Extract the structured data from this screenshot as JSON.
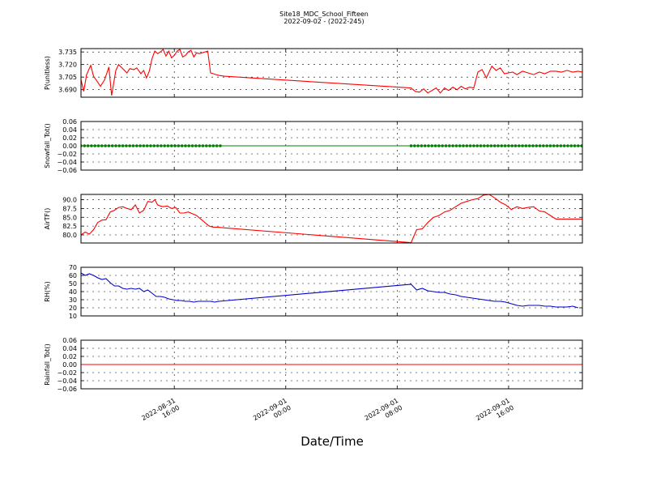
{
  "figure": {
    "title_line1": "Site18_MDC_School_Fifteen",
    "title_line2": "2022-09-02 - (2022-245)",
    "xlabel": "Date/Time",
    "xticks": [
      {
        "t": 16,
        "line1": "2022-08-31",
        "line2": "16:00"
      },
      {
        "t": 24,
        "line1": "2022-09-01",
        "line2": "00:00"
      },
      {
        "t": 32,
        "line1": "2022-09-01",
        "line2": "08:00"
      },
      {
        "t": 40,
        "line1": "2022-09-01",
        "line2": "16:00"
      }
    ]
  },
  "chart_data": [
    {
      "type": "line",
      "ylabel": "P(unitless)",
      "ylim": [
        3.681,
        3.739
      ],
      "yticks": [
        3.69,
        3.705,
        3.72,
        3.735
      ],
      "ytick_labels": [
        "3.690",
        "3.705",
        "3.720",
        "3.735"
      ],
      "grid": true,
      "series": [
        {
          "color": "#ff0000",
          "marker": "none",
          "x": [
            9.3,
            9.5,
            9.7,
            10.0,
            10.2,
            10.5,
            10.7,
            11.0,
            11.3,
            11.5,
            11.8,
            12.0,
            12.3,
            12.6,
            12.8,
            13.1,
            13.3,
            13.6,
            13.8,
            14.0,
            14.2,
            14.4,
            14.6,
            14.8,
            15.0,
            15.2,
            15.4,
            15.6,
            15.8,
            16.0,
            16.2,
            16.4,
            16.6,
            16.8,
            17.0,
            17.2,
            17.4,
            17.6,
            17.8,
            18.0,
            18.2,
            18.4,
            18.6,
            18.8,
            19.0,
            19.2,
            19.6,
            33.0,
            33.3,
            33.6,
            33.9,
            34.2,
            34.5,
            34.8,
            35.1,
            35.4,
            35.7,
            36.0,
            36.3,
            36.6,
            36.9,
            37.2,
            37.5,
            37.8,
            38.1,
            38.4,
            38.8,
            39.1,
            39.4,
            39.7,
            40.0,
            40.3,
            40.6,
            41.0,
            41.4,
            41.8,
            42.2,
            42.6,
            43.0,
            43.4,
            43.8,
            44.2,
            44.6,
            45.0,
            45.3
          ],
          "y": [
            3.702,
            3.688,
            3.708,
            3.719,
            3.706,
            3.699,
            3.694,
            3.702,
            3.717,
            3.683,
            3.713,
            3.72,
            3.715,
            3.71,
            3.715,
            3.714,
            3.716,
            3.709,
            3.713,
            3.704,
            3.712,
            3.727,
            3.736,
            3.733,
            3.735,
            3.738,
            3.73,
            3.736,
            3.728,
            3.731,
            3.736,
            3.738,
            3.729,
            3.731,
            3.735,
            3.737,
            3.729,
            3.734,
            3.733,
            3.734,
            3.735,
            3.736,
            3.71,
            3.709,
            3.708,
            3.707,
            3.706,
            3.692,
            3.688,
            3.687,
            3.691,
            3.686,
            3.689,
            3.692,
            3.686,
            3.692,
            3.689,
            3.693,
            3.69,
            3.694,
            3.691,
            3.693,
            3.692,
            3.711,
            3.714,
            3.704,
            3.718,
            3.713,
            3.716,
            3.709,
            3.71,
            3.711,
            3.708,
            3.712,
            3.71,
            3.708,
            3.711,
            3.709,
            3.712,
            3.712,
            3.711,
            3.713,
            3.711,
            3.712,
            3.711
          ]
        }
      ]
    },
    {
      "type": "scatter",
      "ylabel": "Snowfall_Tot()",
      "ylim": [
        -0.06,
        0.06
      ],
      "yticks": [
        -0.06,
        -0.04,
        -0.02,
        0.0,
        0.02,
        0.04,
        0.06
      ],
      "ytick_labels": [
        "−0.06",
        "−0.04",
        "−0.02",
        "0.00",
        "0.02",
        "0.04",
        "0.06"
      ],
      "grid": true,
      "baseline": {
        "y": 0,
        "color": "#008000"
      },
      "series": [
        {
          "color": "#008000",
          "marker": "dot",
          "segments": [
            {
              "x_start": 9.3,
              "x_end": 19.5,
              "step": 0.25,
              "y": 0
            },
            {
              "x_start": 33.0,
              "x_end": 45.3,
              "step": 0.25,
              "y": 0
            }
          ]
        }
      ]
    },
    {
      "type": "line",
      "ylabel": "AirTF()",
      "ylim": [
        77.7,
        91.5
      ],
      "yticks": [
        80.0,
        82.5,
        85.0,
        87.5,
        90.0
      ],
      "ytick_labels": [
        "80.0",
        "82.5",
        "85.0",
        "87.5",
        "90.0"
      ],
      "grid": true,
      "series": [
        {
          "color": "#ff0000",
          "marker": "none",
          "x": [
            9.3,
            9.6,
            9.9,
            10.2,
            10.5,
            10.8,
            11.1,
            11.4,
            11.7,
            12.0,
            12.3,
            12.6,
            12.9,
            13.2,
            13.5,
            13.8,
            14.1,
            14.4,
            14.6,
            14.8,
            15.0,
            15.2,
            15.5,
            15.8,
            16.1,
            16.4,
            16.7,
            17.0,
            17.3,
            17.6,
            17.9,
            18.2,
            18.5,
            18.8,
            19.1,
            19.6,
            33.0,
            33.4,
            33.8,
            34.2,
            34.6,
            35.0,
            35.4,
            35.8,
            36.2,
            36.6,
            37.0,
            37.4,
            37.8,
            38.2,
            38.6,
            39.0,
            39.4,
            39.8,
            40.2,
            40.6,
            41.0,
            41.4,
            41.8,
            42.2,
            42.6,
            43.0,
            43.4,
            43.8,
            44.2,
            44.6,
            45.0,
            45.3
          ],
          "y": [
            80.0,
            80.8,
            80.2,
            81.5,
            83.5,
            84.2,
            84.3,
            86.5,
            87.0,
            87.8,
            88.0,
            87.5,
            87.2,
            88.5,
            86.2,
            87.0,
            89.5,
            89.3,
            90.0,
            88.5,
            88.2,
            88.0,
            88.2,
            87.5,
            87.8,
            86.2,
            86.2,
            86.5,
            86.0,
            85.5,
            84.5,
            83.5,
            82.5,
            82.2,
            82.2,
            82.0,
            77.8,
            81.5,
            81.7,
            83.5,
            85.0,
            85.5,
            86.5,
            87.0,
            88.0,
            89.0,
            89.5,
            90.0,
            90.3,
            91.3,
            91.5,
            90.5,
            89.3,
            88.5,
            87.2,
            88.0,
            87.5,
            87.8,
            88.0,
            86.8,
            86.5,
            85.5,
            84.5,
            84.5,
            84.5,
            84.5,
            84.5,
            84.5
          ]
        }
      ]
    },
    {
      "type": "line",
      "ylabel": "RH(%)",
      "ylim": [
        10,
        70
      ],
      "yticks": [
        10,
        20,
        30,
        40,
        50,
        60,
        70
      ],
      "ytick_labels": [
        "10",
        "20",
        "30",
        "40",
        "50",
        "60",
        "70"
      ],
      "grid": true,
      "series": [
        {
          "color": "#0000cc",
          "marker": "none",
          "x": [
            9.3,
            9.6,
            9.9,
            10.2,
            10.5,
            10.8,
            11.1,
            11.4,
            11.7,
            12.0,
            12.3,
            12.6,
            12.9,
            13.2,
            13.5,
            13.8,
            14.1,
            14.4,
            14.7,
            15.0,
            15.3,
            15.6,
            15.9,
            16.2,
            16.5,
            16.8,
            17.1,
            17.4,
            17.7,
            18.0,
            18.3,
            18.6,
            18.9,
            19.2,
            33.0,
            33.4,
            33.8,
            34.2,
            34.6,
            35.0,
            35.4,
            35.8,
            36.2,
            36.6,
            37.0,
            37.4,
            37.8,
            38.2,
            38.6,
            39.0,
            39.4,
            39.8,
            40.2,
            40.6,
            41.0,
            41.4,
            41.8,
            42.2,
            42.6,
            43.0,
            43.4,
            43.8,
            44.2,
            44.6,
            45.0
          ],
          "y": [
            63,
            60,
            62,
            60,
            57,
            55,
            56,
            51,
            47,
            47,
            44,
            43,
            44,
            43,
            44,
            40,
            42,
            38,
            34,
            34,
            33,
            31,
            30,
            29,
            29,
            28,
            28,
            27,
            28,
            28,
            28,
            28,
            27,
            28,
            49,
            42,
            44,
            41,
            40,
            39,
            39,
            37,
            36,
            34,
            33,
            32,
            31,
            30,
            29,
            28,
            28,
            27,
            25,
            23,
            22,
            23,
            23,
            23,
            22,
            22,
            21,
            21,
            21,
            22,
            20
          ]
        }
      ]
    },
    {
      "type": "line",
      "ylabel": "Rainfall_Tot()",
      "ylim": [
        -0.06,
        0.06
      ],
      "yticks": [
        -0.06,
        -0.04,
        -0.02,
        0.0,
        0.02,
        0.04,
        0.06
      ],
      "ytick_labels": [
        "−0.06",
        "−0.04",
        "−0.02",
        "0.00",
        "0.02",
        "0.04",
        "0.06"
      ],
      "grid": true,
      "series": [
        {
          "color": "#ff0000",
          "marker": "none",
          "x": [
            9.3,
            45.3
          ],
          "y": [
            0,
            0
          ]
        }
      ]
    }
  ]
}
